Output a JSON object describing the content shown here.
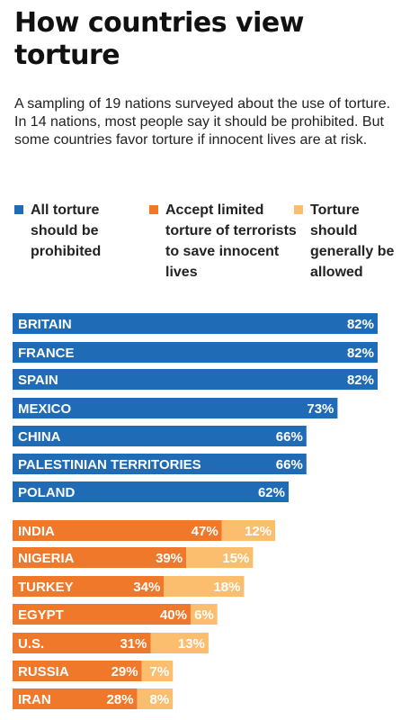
{
  "title": "How countries view torture",
  "subtitle": "A sampling of 19 nations surveyed about the use of torture. In 14 nations, most people say it should be prohibited. But some countries favor torture if innocent lives are at risk.",
  "legend": [
    {
      "label": "All torture should be prohibited",
      "color": "#1f6bb5"
    },
    {
      "label": "Accept limited torture of terrorists to save innocent lives",
      "color": "#f0782a"
    },
    {
      "label": "Torture should generally be allowed",
      "color": "#fbbd6e"
    }
  ],
  "chart_data": {
    "type": "bar",
    "orientation": "horizontal",
    "stacked": true,
    "title": "How countries view torture",
    "categories": [
      "BRITAIN",
      "FRANCE",
      "SPAIN",
      "MEXICO",
      "CHINA",
      "PALESTINIAN TERRITORIES",
      "POLAND",
      "INDIA",
      "NIGERIA",
      "TURKEY",
      "EGYPT",
      "U.S.",
      "RUSSIA",
      "IRAN"
    ],
    "series": [
      {
        "name": "All torture should be prohibited",
        "color": "#1f6bb5",
        "values": [
          82,
          82,
          82,
          73,
          66,
          66,
          62,
          null,
          null,
          null,
          null,
          null,
          null,
          null
        ]
      },
      {
        "name": "Accept limited torture of terrorists to save innocent lives",
        "color": "#f0782a",
        "values": [
          null,
          null,
          null,
          null,
          null,
          null,
          null,
          47,
          39,
          34,
          40,
          31,
          29,
          28
        ]
      },
      {
        "name": "Torture should generally be allowed",
        "color": "#fbbd6e",
        "values": [
          null,
          null,
          null,
          null,
          null,
          null,
          null,
          12,
          15,
          18,
          6,
          13,
          7,
          8
        ]
      }
    ],
    "value_suffix": "%",
    "xlim": [
      0,
      82
    ]
  }
}
